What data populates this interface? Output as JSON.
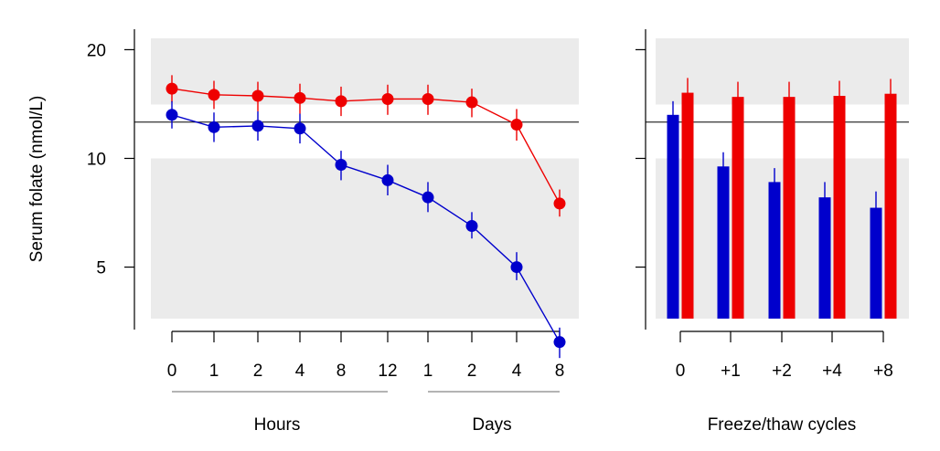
{
  "colors": {
    "blue": "#0000cc",
    "red": "#ee0000",
    "band": "#ebebeb",
    "axis": "#000000",
    "group_line": "#888888"
  },
  "chart_data": [
    {
      "type": "line",
      "ylabel": "Serum folate (nmol/L)",
      "yscale": "log",
      "ylim": [
        3.6,
        21.5
      ],
      "yticks": [
        5,
        10,
        20
      ],
      "ytick_labels": [
        "5",
        "10",
        "20"
      ],
      "reference_line": 12.6,
      "bands": [
        [
          3.6,
          10.0
        ],
        [
          14.1,
          21.5
        ]
      ],
      "categories": [
        "0",
        "1",
        "2",
        "4",
        "8",
        "12",
        "1",
        "2",
        "4",
        "8"
      ],
      "groups": [
        {
          "label": "Hours",
          "categories": [
            "0",
            "1",
            "2",
            "4",
            "8",
            "12"
          ]
        },
        {
          "label": "Days",
          "categories": [
            "1",
            "2",
            "4",
            "8"
          ]
        }
      ],
      "series": [
        {
          "name": "red",
          "values": [
            15.6,
            15.0,
            14.9,
            14.7,
            14.4,
            14.6,
            14.6,
            14.3,
            12.4,
            7.5
          ],
          "err_low": [
            14.3,
            13.7,
            13.5,
            13.3,
            13.1,
            13.2,
            13.2,
            13.0,
            11.2,
            6.9
          ],
          "err_high": [
            17.0,
            16.4,
            16.3,
            16.1,
            15.8,
            16.0,
            16.0,
            15.6,
            13.7,
            8.2
          ]
        },
        {
          "name": "blue",
          "values": [
            13.2,
            12.2,
            12.3,
            12.1,
            9.6,
            8.7,
            7.8,
            6.5,
            5.0,
            3.1
          ],
          "err_low": [
            12.1,
            11.1,
            11.2,
            11.0,
            8.7,
            7.9,
            7.1,
            6.0,
            4.6,
            2.8
          ],
          "err_high": [
            14.4,
            13.4,
            13.5,
            13.3,
            10.5,
            9.6,
            8.6,
            7.1,
            5.5,
            3.4
          ]
        }
      ]
    },
    {
      "type": "bar",
      "xlabel": "Freeze/thaw cycles",
      "yscale": "log",
      "ylim": [
        3.6,
        21.5
      ],
      "yticks": [
        5,
        10,
        20
      ],
      "reference_line": 12.6,
      "bands": [
        [
          3.6,
          10.0
        ],
        [
          14.1,
          21.5
        ]
      ],
      "categories": [
        "0",
        "+1",
        "+2",
        "+4",
        "+8"
      ],
      "series": [
        {
          "name": "blue",
          "values": [
            13.2,
            9.5,
            8.6,
            7.8,
            7.3
          ],
          "err_low": [
            12.1,
            8.7,
            7.9,
            7.1,
            6.6
          ],
          "err_high": [
            14.4,
            10.4,
            9.4,
            8.6,
            8.1
          ]
        },
        {
          "name": "red",
          "values": [
            15.2,
            14.8,
            14.8,
            14.9,
            15.1
          ],
          "err_low": [
            13.9,
            13.5,
            13.5,
            13.6,
            13.8
          ],
          "err_high": [
            16.7,
            16.3,
            16.3,
            16.4,
            16.6
          ]
        }
      ]
    }
  ]
}
